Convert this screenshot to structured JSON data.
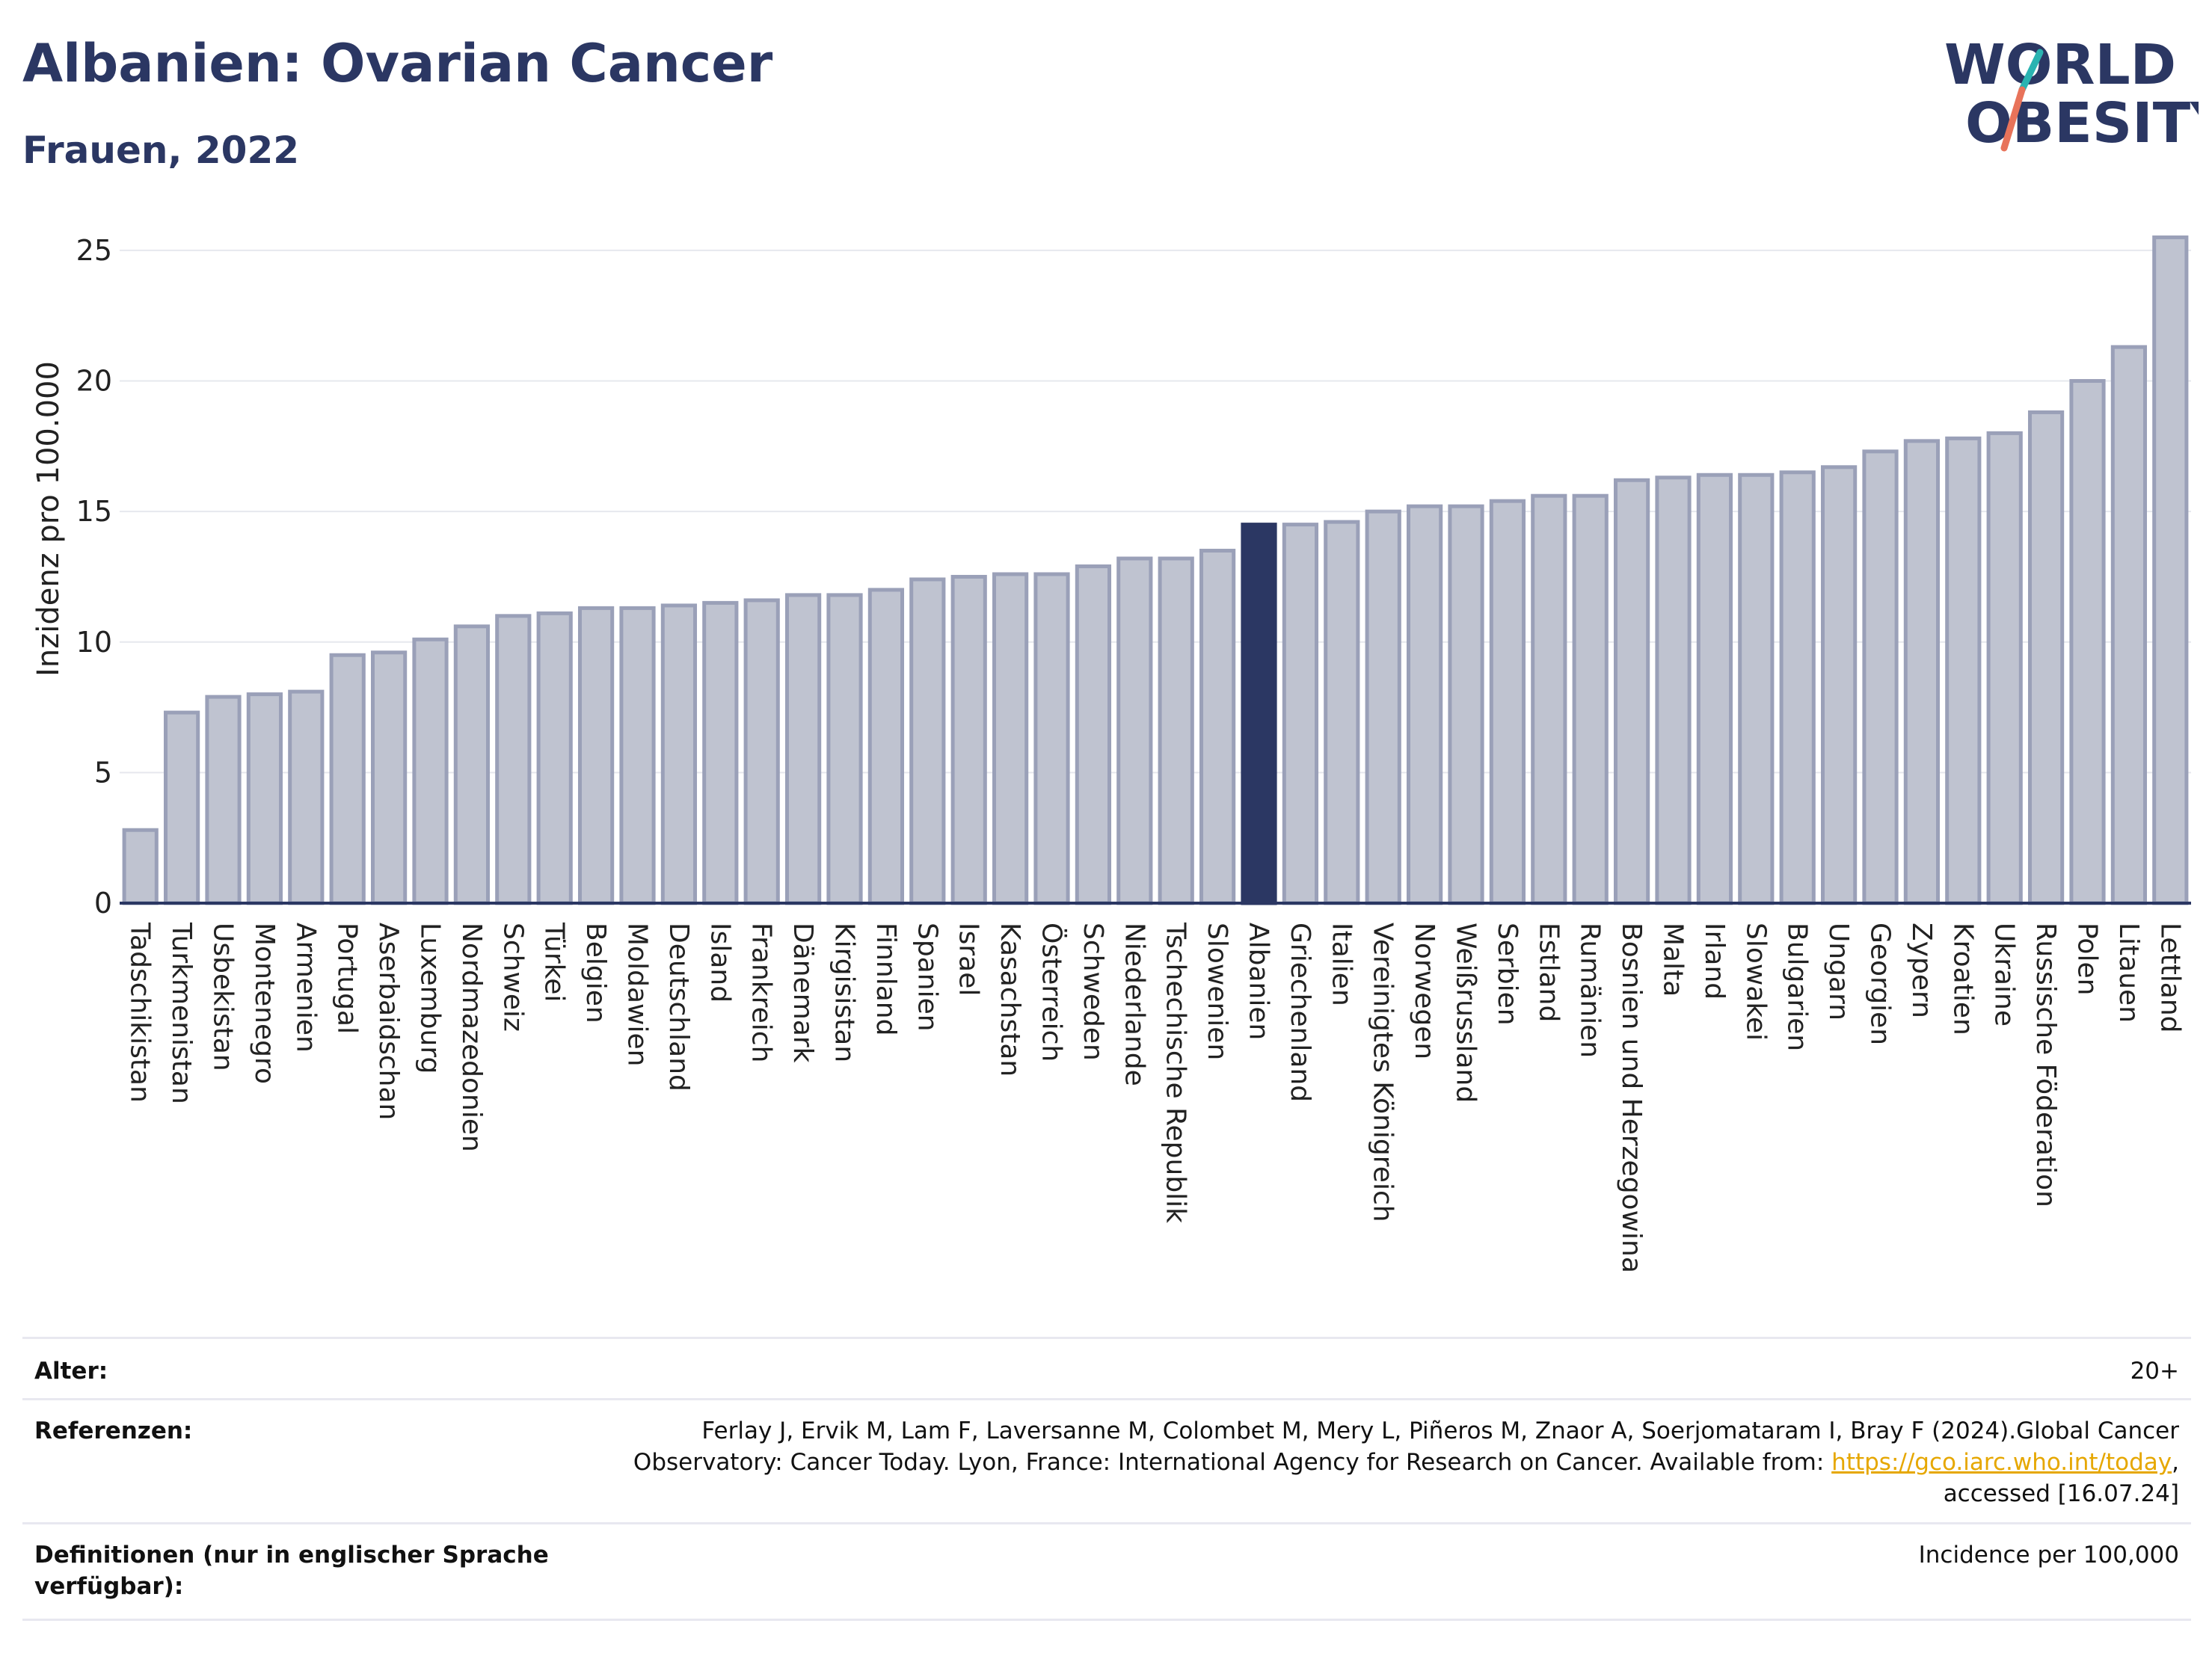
{
  "header": {
    "title": "Albanien: Ovarian Cancer",
    "subtitle": "Frauen, 2022"
  },
  "logo": {
    "line1": "WORLD",
    "line2": "OBESITY",
    "slash_colors": [
      "#2ab3b1",
      "#e8735a"
    ]
  },
  "colors": {
    "bar": "#bfc3d0",
    "bar_border": "#9aa0b8",
    "highlight": "#2b3763",
    "grid": "#e6e8ee",
    "axis": "#2b3763"
  },
  "chart_data": {
    "type": "bar",
    "ylabel": "Inzidenz pro 100.000",
    "ylim": [
      0,
      26
    ],
    "yticks": [
      0,
      5,
      10,
      15,
      20,
      25
    ],
    "grid": true,
    "highlight": "Albanien",
    "categories": [
      "Tadschikistan",
      "Turkmenistan",
      "Usbekistan",
      "Montenegro",
      "Armenien",
      "Portugal",
      "Aserbaidschan",
      "Luxemburg",
      "Nordmazedonien",
      "Schweiz",
      "Türkei",
      "Belgien",
      "Moldawien",
      "Deutschland",
      "Island",
      "Frankreich",
      "Dänemark",
      "Kirgisistan",
      "Finnland",
      "Spanien",
      "Israel",
      "Kasachstan",
      "Österreich",
      "Schweden",
      "Niederlande",
      "Tschechische Republik",
      "Slowenien",
      "Albanien",
      "Griechenland",
      "Italien",
      "Vereinigtes Königreich",
      "Norwegen",
      "Weißrussland",
      "Serbien",
      "Estland",
      "Rumänien",
      "Bosnien und Herzegowina",
      "Malta",
      "Irland",
      "Slowakei",
      "Bulgarien",
      "Ungarn",
      "Georgien",
      "Zypern",
      "Kroatien",
      "Ukraine",
      "Russische Föderation",
      "Polen",
      "Litauen",
      "Lettland"
    ],
    "values": [
      2.8,
      7.3,
      7.9,
      8.0,
      8.1,
      9.5,
      9.6,
      10.1,
      10.6,
      11.0,
      11.1,
      11.3,
      11.3,
      11.4,
      11.5,
      11.6,
      11.8,
      11.8,
      12.0,
      12.4,
      12.5,
      12.6,
      12.6,
      12.9,
      13.2,
      13.2,
      13.5,
      14.5,
      14.5,
      14.6,
      15.0,
      15.2,
      15.2,
      15.4,
      15.6,
      15.6,
      16.2,
      16.3,
      16.4,
      16.4,
      16.5,
      16.7,
      17.3,
      17.7,
      17.8,
      18.0,
      18.8,
      20.0,
      21.3,
      25.5
    ]
  },
  "info": {
    "age_label": "Alter:",
    "age_value": "20+",
    "ref_label": "Referenzen:",
    "ref_line1": "Ferlay J, Ervik M, Lam F, Laversanne M, Colombet M, Mery L, Piñeros M, Znaor A, Soerjomataram I, Bray F (2024).Global Cancer",
    "ref_line2_pre": "Observatory: Cancer Today. Lyon, France: International Agency for Research on Cancer. Available from: ",
    "ref_link": "https://gco.iarc.who.int/today",
    "ref_line2_post": ",",
    "ref_line3": "accessed [16.07.24]",
    "def_label_1": "Definitionen (nur in englischer Sprache",
    "def_label_2": "verfügbar):",
    "def_value": "Incidence per 100,000"
  }
}
